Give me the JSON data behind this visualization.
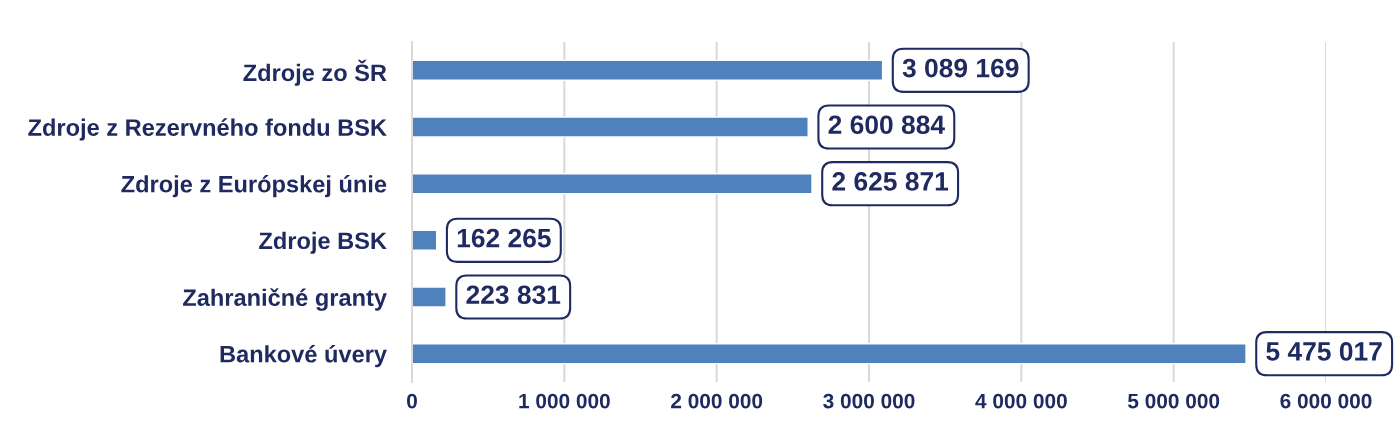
{
  "chart_data": {
    "type": "bar",
    "orientation": "horizontal",
    "categories": [
      "Zdroje zo ŠR",
      "Zdroje z Rezervného fondu BSK",
      "Zdroje z Európskej únie",
      "Zdroje BSK",
      "Zahraničné granty",
      "Bankové úvery"
    ],
    "values": [
      3089169,
      2600884,
      2625871,
      162265,
      223831,
      5475017
    ],
    "color": "#4f81bd",
    "value_labels": [
      "3 089 169",
      "2 600 884",
      "2 625 871",
      "162 265",
      "223 831",
      "5 475 017"
    ],
    "xlim": [
      0,
      6000000
    ],
    "xticks": [
      0,
      {
        "value": 1000000,
        "label": "1 000 000"
      },
      {
        "value": 2000000,
        "label": "2 000 000"
      },
      {
        "value": 3000000,
        "label": "3 000 000"
      },
      {
        "value": 4000000,
        "label": "4 000 000"
      },
      {
        "value": 5000000,
        "label": "5 000 000"
      },
      {
        "value": 6000000,
        "label": "6 000 000"
      }
    ],
    "grid": "x"
  }
}
